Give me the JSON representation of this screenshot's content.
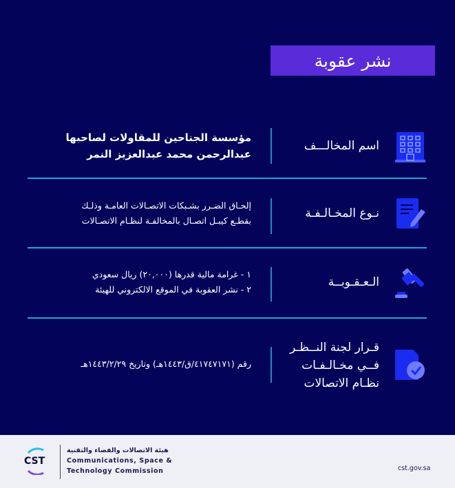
{
  "title": "نشر عقوبة",
  "rows": [
    {
      "label": "اسم المخالـــف",
      "icon": "building-icon",
      "lines": [
        "مؤسسة الجناحين للمقاولات لصاحبها",
        "عبدالرحمن محمد عبدالعزيز النمر"
      ]
    },
    {
      "label": "نـوع المخـالـفـة",
      "icon": "document-edit-icon",
      "lines": [
        "إلحـاق الضـرر بشـبكات الاتصـالات العامـة وذلـك",
        "بقطـع كيبـل اتصـال بالمخالفـة لنظـام الاتصـالات"
      ]
    },
    {
      "label": "الـعـقـوبــة",
      "icon": "gavel-icon",
      "lines": [
        "١ -  غرامة مالية قدرها (٢٠,٠٠٠) ريال سعودي",
        "٢ - نشر العقوبة في الموقع الالكتروني للهيئة"
      ]
    },
    {
      "label_lines": [
        "قـرار لجنة النــظـر",
        "فــي مخـالـفـات",
        "نظـام الاتصالات"
      ],
      "icon": "document-check-icon",
      "lines": [
        "رقم (٤١٧٤٧١٧١/ق/١٤٤٣هـ) وتاريخ ١٤٤٣/٢/٢٩هـ"
      ]
    }
  ],
  "footer": {
    "logo_text": "CST",
    "org_ar": "هيئة الاتصالات والفضاء والتقنية",
    "org_en_1": "Communications, Space &",
    "org_en_2": "Technology Commission",
    "website": "cst.gov.sa"
  },
  "colors": {
    "background": "#03035a",
    "banner": "#5a2bd8",
    "divider": "#1fa6d6",
    "icon": "#1a2cf0"
  }
}
